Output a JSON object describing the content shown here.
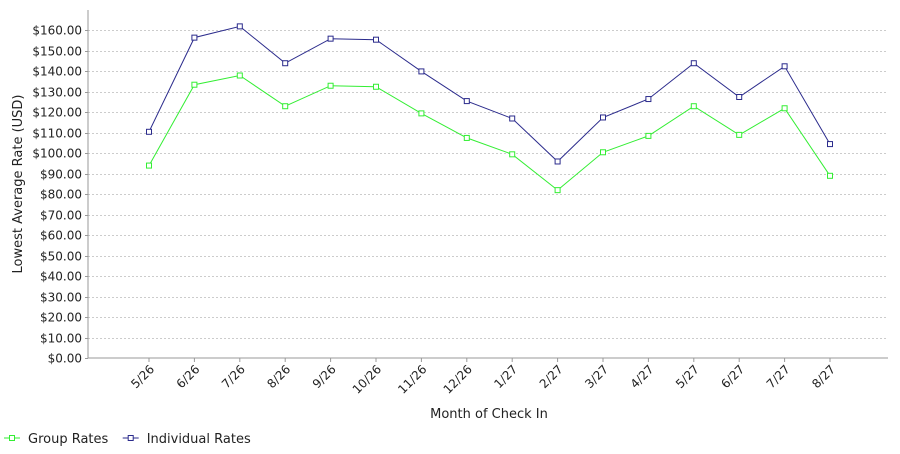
{
  "chart_data": {
    "type": "line",
    "title": "",
    "xlabel": "Month of Check In",
    "ylabel": "Lowest Average Rate (USD)",
    "categories": [
      "5/26",
      "6/26",
      "7/26",
      "8/26",
      "9/26",
      "10/26",
      "11/26",
      "12/26",
      "1/27",
      "2/27",
      "3/27",
      "4/27",
      "5/27",
      "6/27",
      "7/27",
      "8/27"
    ],
    "ylim": [
      0,
      170
    ],
    "yticks": [
      {
        "value": 0,
        "label": "$0.00"
      },
      {
        "value": 10,
        "label": "$10.00"
      },
      {
        "value": 20,
        "label": "$20.00"
      },
      {
        "value": 30,
        "label": "$30.00"
      },
      {
        "value": 40,
        "label": "$40.00"
      },
      {
        "value": 50,
        "label": "$50.00"
      },
      {
        "value": 60,
        "label": "$60.00"
      },
      {
        "value": 70,
        "label": "$70.00"
      },
      {
        "value": 80,
        "label": "$80.00"
      },
      {
        "value": 90,
        "label": "$90.00"
      },
      {
        "value": 100,
        "label": "$100.00"
      },
      {
        "value": 110,
        "label": "$110.00"
      },
      {
        "value": 120,
        "label": "$120.00"
      },
      {
        "value": 130,
        "label": "$130.00"
      },
      {
        "value": 140,
        "label": "$140.00"
      },
      {
        "value": 150,
        "label": "$150.00"
      },
      {
        "value": 160,
        "label": "$160.00"
      }
    ],
    "grid": true,
    "legend_position": "bottom-left",
    "series": [
      {
        "name": "Group Rates",
        "color": "#33ee33",
        "marker": "square",
        "values": [
          94,
          133.5,
          138,
          123,
          133,
          132.5,
          119.5,
          107.5,
          99.5,
          82,
          100.5,
          108.5,
          123,
          109,
          122,
          89
        ]
      },
      {
        "name": "Individual Rates",
        "color": "#2b2b8c",
        "marker": "square",
        "values": [
          110.5,
          156.5,
          162,
          144,
          156,
          155.5,
          140,
          125.5,
          117,
          96,
          117.5,
          126.5,
          144,
          127.5,
          142.5,
          104.5
        ]
      }
    ]
  }
}
